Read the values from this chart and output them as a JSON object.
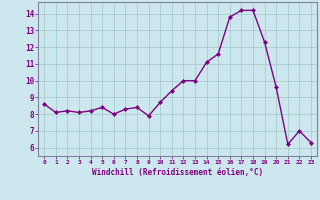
{
  "x": [
    0,
    1,
    2,
    3,
    4,
    5,
    6,
    7,
    8,
    9,
    10,
    11,
    12,
    13,
    14,
    15,
    16,
    17,
    18,
    19,
    20,
    21,
    22,
    23
  ],
  "y": [
    8.6,
    8.1,
    8.2,
    8.1,
    8.2,
    8.4,
    8.0,
    8.3,
    8.4,
    7.9,
    8.7,
    9.4,
    10.0,
    10.0,
    11.1,
    11.6,
    13.8,
    14.2,
    14.2,
    12.3,
    9.6,
    6.2,
    7.0,
    6.3
  ],
  "line_color": "#800080",
  "marker": "D",
  "marker_size": 2.0,
  "bg_color": "#cce8ee",
  "grid_color": "#aacccc",
  "xlabel": "Windchill (Refroidissement éolien,°C)",
  "xlabel_color": "#800080",
  "tick_color": "#800080",
  "axis_color": "#8080a0",
  "ylim": [
    5.5,
    14.7
  ],
  "yticks": [
    6,
    7,
    8,
    9,
    10,
    11,
    12,
    13,
    14
  ],
  "xlim": [
    -0.5,
    23.5
  ],
  "xticks": [
    0,
    1,
    2,
    3,
    4,
    5,
    6,
    7,
    8,
    9,
    10,
    11,
    12,
    13,
    14,
    15,
    16,
    17,
    18,
    19,
    20,
    21,
    22,
    23
  ],
  "xtick_labels": [
    "0",
    "1",
    "2",
    "3",
    "4",
    "5",
    "6",
    "7",
    "8",
    "9",
    "10",
    "11",
    "12",
    "13",
    "14",
    "15",
    "16",
    "17",
    "18",
    "19",
    "20",
    "21",
    "22",
    "23"
  ],
  "linewidth": 1.0
}
